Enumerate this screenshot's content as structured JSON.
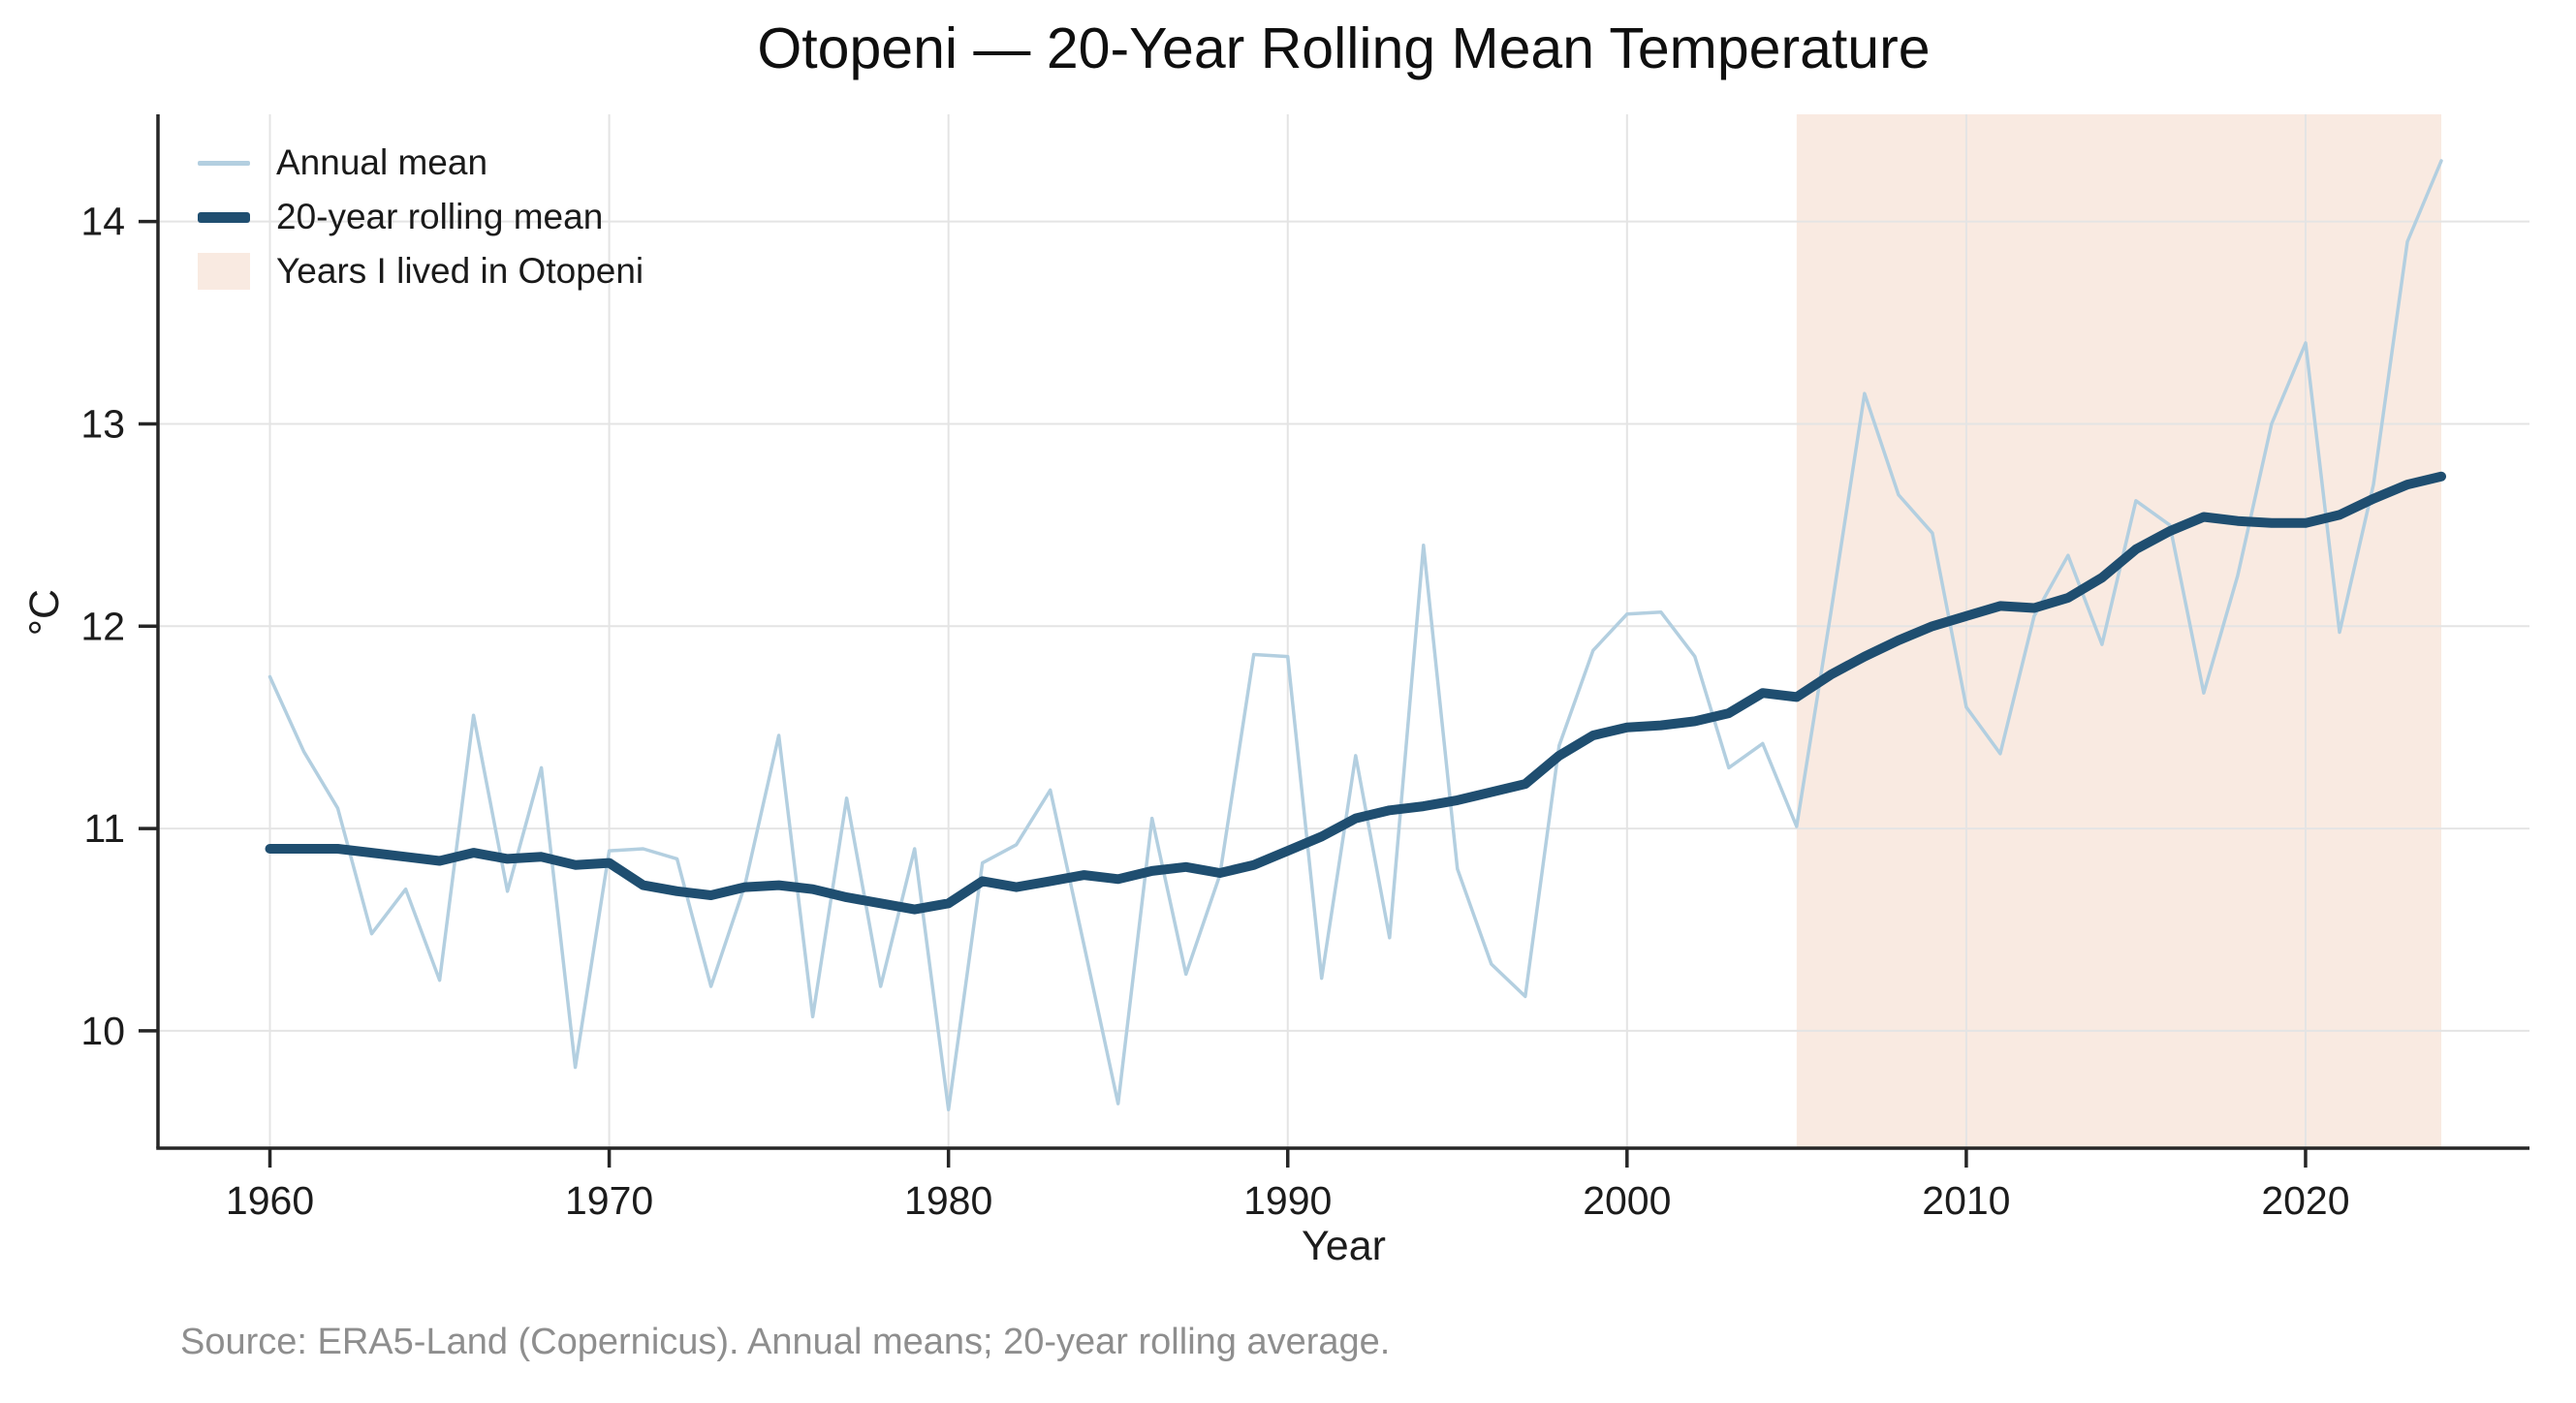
{
  "title": "Otopeni — 20-Year Rolling Mean Temperature",
  "source_note": "Source: ERA5-Land (Copernicus). Annual means; 20-year rolling average.",
  "colors": {
    "annual_line": "#b3cfe0",
    "rolling_line": "#1f4e70",
    "shade": "#f9eae1",
    "grid": "#e4e4e4",
    "spine": "#262626",
    "tick_label": "#1c1c1c"
  },
  "legend": {
    "items": [
      {
        "label": "Annual mean",
        "swatch": "thin-line",
        "color_key": "annual_line"
      },
      {
        "label": "20-year rolling mean",
        "swatch": "thick-line",
        "color_key": "rolling_line"
      },
      {
        "label": "Years I lived in Otopeni",
        "swatch": "rect",
        "color_key": "shade"
      }
    ]
  },
  "chart_data": {
    "type": "line",
    "title": "Otopeni — 20-Year Rolling Mean Temperature",
    "xlabel": "Year",
    "ylabel": "°C",
    "grid": true,
    "legend_position": "upper-left",
    "xlim": [
      1956.7,
      2026.6
    ],
    "ylim": [
      9.42,
      14.53
    ],
    "xticks": [
      1960,
      1970,
      1980,
      1990,
      2000,
      2010,
      2020
    ],
    "yticks": [
      10,
      11,
      12,
      13,
      14
    ],
    "shaded_region": {
      "label": "Years I lived in Otopeni",
      "from": 2005,
      "to": 2024
    },
    "x": [
      1960,
      1961,
      1962,
      1963,
      1964,
      1965,
      1966,
      1967,
      1968,
      1969,
      1970,
      1971,
      1972,
      1973,
      1974,
      1975,
      1976,
      1977,
      1978,
      1979,
      1980,
      1981,
      1982,
      1983,
      1984,
      1985,
      1986,
      1987,
      1988,
      1989,
      1990,
      1991,
      1992,
      1993,
      1994,
      1995,
      1996,
      1997,
      1998,
      1999,
      2000,
      2001,
      2002,
      2003,
      2004,
      2005,
      2006,
      2007,
      2008,
      2009,
      2010,
      2011,
      2012,
      2013,
      2014,
      2015,
      2016,
      2017,
      2018,
      2019,
      2020,
      2021,
      2022,
      2023,
      2024
    ],
    "series": [
      {
        "name": "Annual mean",
        "values": [
          11.75,
          11.38,
          11.1,
          10.48,
          10.7,
          10.25,
          11.56,
          10.69,
          11.3,
          9.82,
          10.89,
          10.9,
          10.85,
          10.22,
          10.72,
          11.46,
          10.07,
          11.15,
          10.22,
          10.9,
          9.61,
          10.83,
          10.92,
          11.19,
          10.42,
          9.64,
          11.05,
          10.28,
          10.77,
          11.86,
          11.85,
          10.26,
          11.36,
          10.46,
          12.4,
          10.8,
          10.33,
          10.17,
          11.41,
          11.88,
          12.06,
          12.07,
          11.85,
          11.3,
          11.42,
          11.01,
          12.06,
          13.15,
          12.65,
          12.46,
          11.6,
          11.37,
          12.05,
          12.35,
          11.91,
          12.62,
          12.5,
          11.67,
          12.25,
          13.0,
          13.4,
          11.97,
          12.7,
          13.9,
          14.3
        ]
      },
      {
        "name": "20-year rolling mean",
        "values": [
          10.9,
          10.9,
          10.9,
          10.88,
          10.86,
          10.84,
          10.88,
          10.85,
          10.86,
          10.82,
          10.83,
          10.72,
          10.69,
          10.67,
          10.71,
          10.72,
          10.7,
          10.66,
          10.63,
          10.6,
          10.63,
          10.74,
          10.71,
          10.74,
          10.77,
          10.75,
          10.79,
          10.81,
          10.78,
          10.82,
          10.89,
          10.96,
          11.05,
          11.09,
          11.11,
          11.14,
          11.18,
          11.22,
          11.36,
          11.46,
          11.5,
          11.51,
          11.53,
          11.57,
          11.67,
          11.65,
          11.76,
          11.85,
          11.93,
          12.0,
          12.05,
          12.1,
          12.09,
          12.14,
          12.24,
          12.38,
          12.47,
          12.54,
          12.52,
          12.51,
          12.51,
          12.55,
          12.63,
          12.7,
          12.74
        ]
      }
    ]
  }
}
